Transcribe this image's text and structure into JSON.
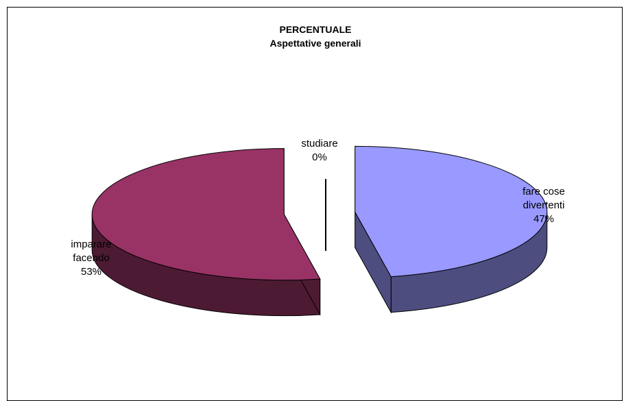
{
  "chart_data": {
    "type": "pie",
    "title": "PERCENTUALE",
    "subtitle": "Aspettative generali",
    "slices": [
      {
        "label_lines": [
          "fare cose",
          "divertenti"
        ],
        "value": 47,
        "value_label": "47%",
        "color": "#9999ff",
        "side_color": "#4d4d80"
      },
      {
        "label_lines": [
          "studiare"
        ],
        "value": 0,
        "value_label": "0%",
        "color": "#ffffcc",
        "side_color": "#808066"
      },
      {
        "label_lines": [
          "imparare",
          "facendo"
        ],
        "value": 53,
        "value_label": "53%",
        "color": "#993366",
        "side_color": "#4d1a33"
      }
    ],
    "legend": "none",
    "style": "3d-exploded"
  }
}
